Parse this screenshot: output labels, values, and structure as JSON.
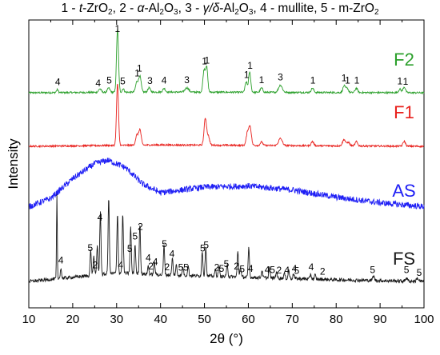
{
  "chart_data": {
    "type": "line",
    "header": {
      "parts": [
        {
          "t": "1 - "
        },
        {
          "t": "t",
          "i": true
        },
        {
          "t": "-ZrO"
        },
        {
          "t": "2",
          "sub": true
        },
        {
          "t": ", 2 - "
        },
        {
          "t": "α",
          "i": true
        },
        {
          "t": "-Al"
        },
        {
          "t": "2",
          "sub": true
        },
        {
          "t": "O"
        },
        {
          "t": "3",
          "sub": true
        },
        {
          "t": ", 3 - "
        },
        {
          "t": "γ/δ",
          "i": true
        },
        {
          "t": "-Al"
        },
        {
          "t": "2",
          "sub": true
        },
        {
          "t": "O"
        },
        {
          "t": "3",
          "sub": true
        },
        {
          "t": ", 4 - mullite, 5 - m-ZrO"
        },
        {
          "t": "2",
          "sub": true
        }
      ]
    },
    "xlabel": "2θ (°)",
    "ylabel": "Intensity",
    "xlim": [
      10,
      100
    ],
    "xticks": [
      10,
      20,
      30,
      40,
      50,
      60,
      70,
      80,
      90,
      100
    ],
    "y_ticks_shown": false,
    "grid": false,
    "series": [
      {
        "name": "F2",
        "color": "#2ca02c",
        "baseline": 0.0,
        "noise": 0.012,
        "background": [
          [
            10,
            0
          ],
          [
            40,
            0.01
          ],
          [
            100,
            0
          ]
        ],
        "peaks": [
          [
            16.5,
            0.04,
            0.3
          ],
          [
            26.2,
            0.05,
            0.4
          ],
          [
            28.2,
            0.06,
            0.4
          ],
          [
            30.2,
            0.88,
            0.32
          ],
          [
            31.5,
            0.05,
            0.3
          ],
          [
            34.6,
            0.14,
            0.4
          ],
          [
            35.3,
            0.22,
            0.4
          ],
          [
            37.4,
            0.06,
            0.4
          ],
          [
            40.8,
            0.05,
            0.4
          ],
          [
            46.0,
            0.06,
            0.6
          ],
          [
            49.9,
            0.3,
            0.35
          ],
          [
            50.5,
            0.35,
            0.35
          ],
          [
            59.5,
            0.14,
            0.35
          ],
          [
            60.3,
            0.28,
            0.35
          ],
          [
            63.0,
            0.06,
            0.4
          ],
          [
            67.3,
            0.1,
            0.6
          ],
          [
            74.6,
            0.06,
            0.4
          ],
          [
            81.8,
            0.09,
            0.4
          ],
          [
            82.5,
            0.06,
            0.4
          ],
          [
            84.6,
            0.06,
            0.4
          ],
          [
            94.5,
            0.05,
            0.4
          ],
          [
            95.5,
            0.08,
            0.4
          ]
        ]
      },
      {
        "name": "F1",
        "color": "#e8201c",
        "baseline": 0.0,
        "noise": 0.012,
        "background": [
          [
            10,
            0
          ],
          [
            40,
            0.02
          ],
          [
            100,
            0
          ]
        ],
        "peaks": [
          [
            30.2,
            0.88,
            0.32
          ],
          [
            34.6,
            0.14,
            0.4
          ],
          [
            35.3,
            0.22,
            0.4
          ],
          [
            50.2,
            0.38,
            0.4
          ],
          [
            50.9,
            0.12,
            0.4
          ],
          [
            59.8,
            0.18,
            0.4
          ],
          [
            60.4,
            0.26,
            0.4
          ],
          [
            63.0,
            0.05,
            0.4
          ],
          [
            67.3,
            0.1,
            0.6
          ],
          [
            74.6,
            0.06,
            0.4
          ],
          [
            81.8,
            0.09,
            0.5
          ],
          [
            82.8,
            0.05,
            0.4
          ],
          [
            84.6,
            0.06,
            0.4
          ],
          [
            95.5,
            0.07,
            0.4
          ]
        ]
      },
      {
        "name": "AS",
        "color": "#1f1ff5",
        "baseline": 0.0,
        "noise": 0.055,
        "background": [
          [
            10,
            0.05
          ],
          [
            15,
            0.2
          ],
          [
            20,
            0.55
          ],
          [
            25,
            0.82
          ],
          [
            28,
            0.88
          ],
          [
            32,
            0.75
          ],
          [
            36,
            0.45
          ],
          [
            40,
            0.3
          ],
          [
            50,
            0.4
          ],
          [
            60,
            0.42
          ],
          [
            70,
            0.35
          ],
          [
            80,
            0.22
          ],
          [
            90,
            0.12
          ],
          [
            100,
            0.05
          ]
        ],
        "peaks": []
      },
      {
        "name": "FS",
        "color": "#1a1a1a",
        "baseline": 0.0,
        "noise": 0.02,
        "background": [
          [
            10,
            0
          ],
          [
            20,
            0.05
          ],
          [
            30,
            0.1
          ],
          [
            40,
            0.08
          ],
          [
            60,
            0.05
          ],
          [
            80,
            0.02
          ],
          [
            100,
            0
          ]
        ],
        "peaks": [
          [
            16.4,
            1.0,
            0.12
          ],
          [
            17.3,
            0.12,
            0.2
          ],
          [
            24.1,
            0.3,
            0.2
          ],
          [
            24.8,
            0.22,
            0.2
          ],
          [
            25.6,
            0.35,
            0.2
          ],
          [
            26.3,
            0.75,
            0.2
          ],
          [
            28.2,
            0.9,
            0.2
          ],
          [
            30.2,
            0.7,
            0.2
          ],
          [
            31.4,
            0.7,
            0.2
          ],
          [
            33.2,
            0.55,
            0.2
          ],
          [
            34.2,
            0.35,
            0.2
          ],
          [
            35.3,
            0.6,
            0.2
          ],
          [
            37.2,
            0.1,
            0.2
          ],
          [
            38.6,
            0.15,
            0.2
          ],
          [
            40.8,
            0.35,
            0.2
          ],
          [
            42.7,
            0.2,
            0.2
          ],
          [
            43.6,
            0.12,
            0.2
          ],
          [
            45.1,
            0.1,
            0.2
          ],
          [
            46.3,
            0.12,
            0.2
          ],
          [
            49.5,
            0.3,
            0.2
          ],
          [
            50.3,
            0.35,
            0.2
          ],
          [
            52.5,
            0.08,
            0.2
          ],
          [
            53.3,
            0.12,
            0.2
          ],
          [
            55.2,
            0.15,
            0.2
          ],
          [
            57.6,
            0.3,
            0.2
          ],
          [
            58.2,
            0.12,
            0.2
          ],
          [
            60.1,
            0.35,
            0.2
          ],
          [
            63.1,
            0.08,
            0.2
          ],
          [
            64.8,
            0.12,
            0.2
          ],
          [
            66.4,
            0.08,
            0.2
          ],
          [
            68.2,
            0.06,
            0.2
          ],
          [
            69.2,
            0.1,
            0.2
          ],
          [
            70.3,
            0.06,
            0.2
          ],
          [
            74.2,
            0.06,
            0.2
          ],
          [
            75.2,
            0.05,
            0.2
          ],
          [
            88.5,
            0.05,
            0.3
          ],
          [
            96.0,
            0.04,
            0.3
          ],
          [
            98.5,
            0.04,
            0.3
          ]
        ]
      }
    ],
    "peak_labels": [
      {
        "series": "F2",
        "items": [
          [
            "4",
            16.6
          ],
          [
            "4",
            25.8
          ],
          [
            "5",
            28.3
          ],
          [
            "1",
            30.2
          ],
          [
            "5",
            31.4
          ],
          [
            "1",
            35.2
          ],
          [
            "1",
            34.7
          ],
          [
            "3",
            37.6
          ],
          [
            "4",
            40.8
          ],
          [
            "3",
            46.0
          ],
          [
            "1",
            50.0
          ],
          [
            "1",
            50.6
          ],
          [
            "1",
            59.6
          ],
          [
            "1",
            60.4
          ],
          [
            "1",
            63.0
          ],
          [
            "3",
            67.3
          ],
          [
            "1",
            74.7
          ],
          [
            "1",
            81.8
          ],
          [
            "1",
            82.6
          ],
          [
            "1",
            84.7
          ],
          [
            "1",
            94.5
          ],
          [
            "1",
            95.8
          ]
        ]
      },
      {
        "series": "FS",
        "items": [
          [
            "4",
            17.3
          ],
          [
            "5",
            24.0
          ],
          [
            "2",
            25.1
          ],
          [
            "4",
            26.2
          ],
          [
            "4",
            30.9
          ],
          [
            "5",
            33.0
          ],
          [
            "5",
            34.2
          ],
          [
            "2",
            35.4
          ],
          [
            "2",
            37.8
          ],
          [
            "4",
            37.2
          ],
          [
            "4",
            38.8
          ],
          [
            "5",
            40.9
          ],
          [
            "2",
            41.5
          ],
          [
            "4",
            42.6
          ],
          [
            "5",
            44.6
          ],
          [
            "5",
            45.8
          ],
          [
            "5",
            49.6
          ],
          [
            "5",
            50.4
          ],
          [
            "2",
            52.8
          ],
          [
            "5",
            53.9
          ],
          [
            "5",
            55.0
          ],
          [
            "2",
            57.3
          ],
          [
            "4",
            60.5
          ],
          [
            "5",
            58.6
          ],
          [
            "4",
            64.3
          ],
          [
            "5",
            65.5
          ],
          [
            "2",
            67.0
          ],
          [
            "4",
            68.8
          ],
          [
            "4",
            70.5
          ],
          [
            "5",
            71.0
          ],
          [
            "4",
            74.3
          ],
          [
            "2",
            76.9
          ],
          [
            "5",
            88.3
          ],
          [
            "5",
            96.0
          ],
          [
            "5",
            98.9
          ]
        ]
      }
    ]
  }
}
